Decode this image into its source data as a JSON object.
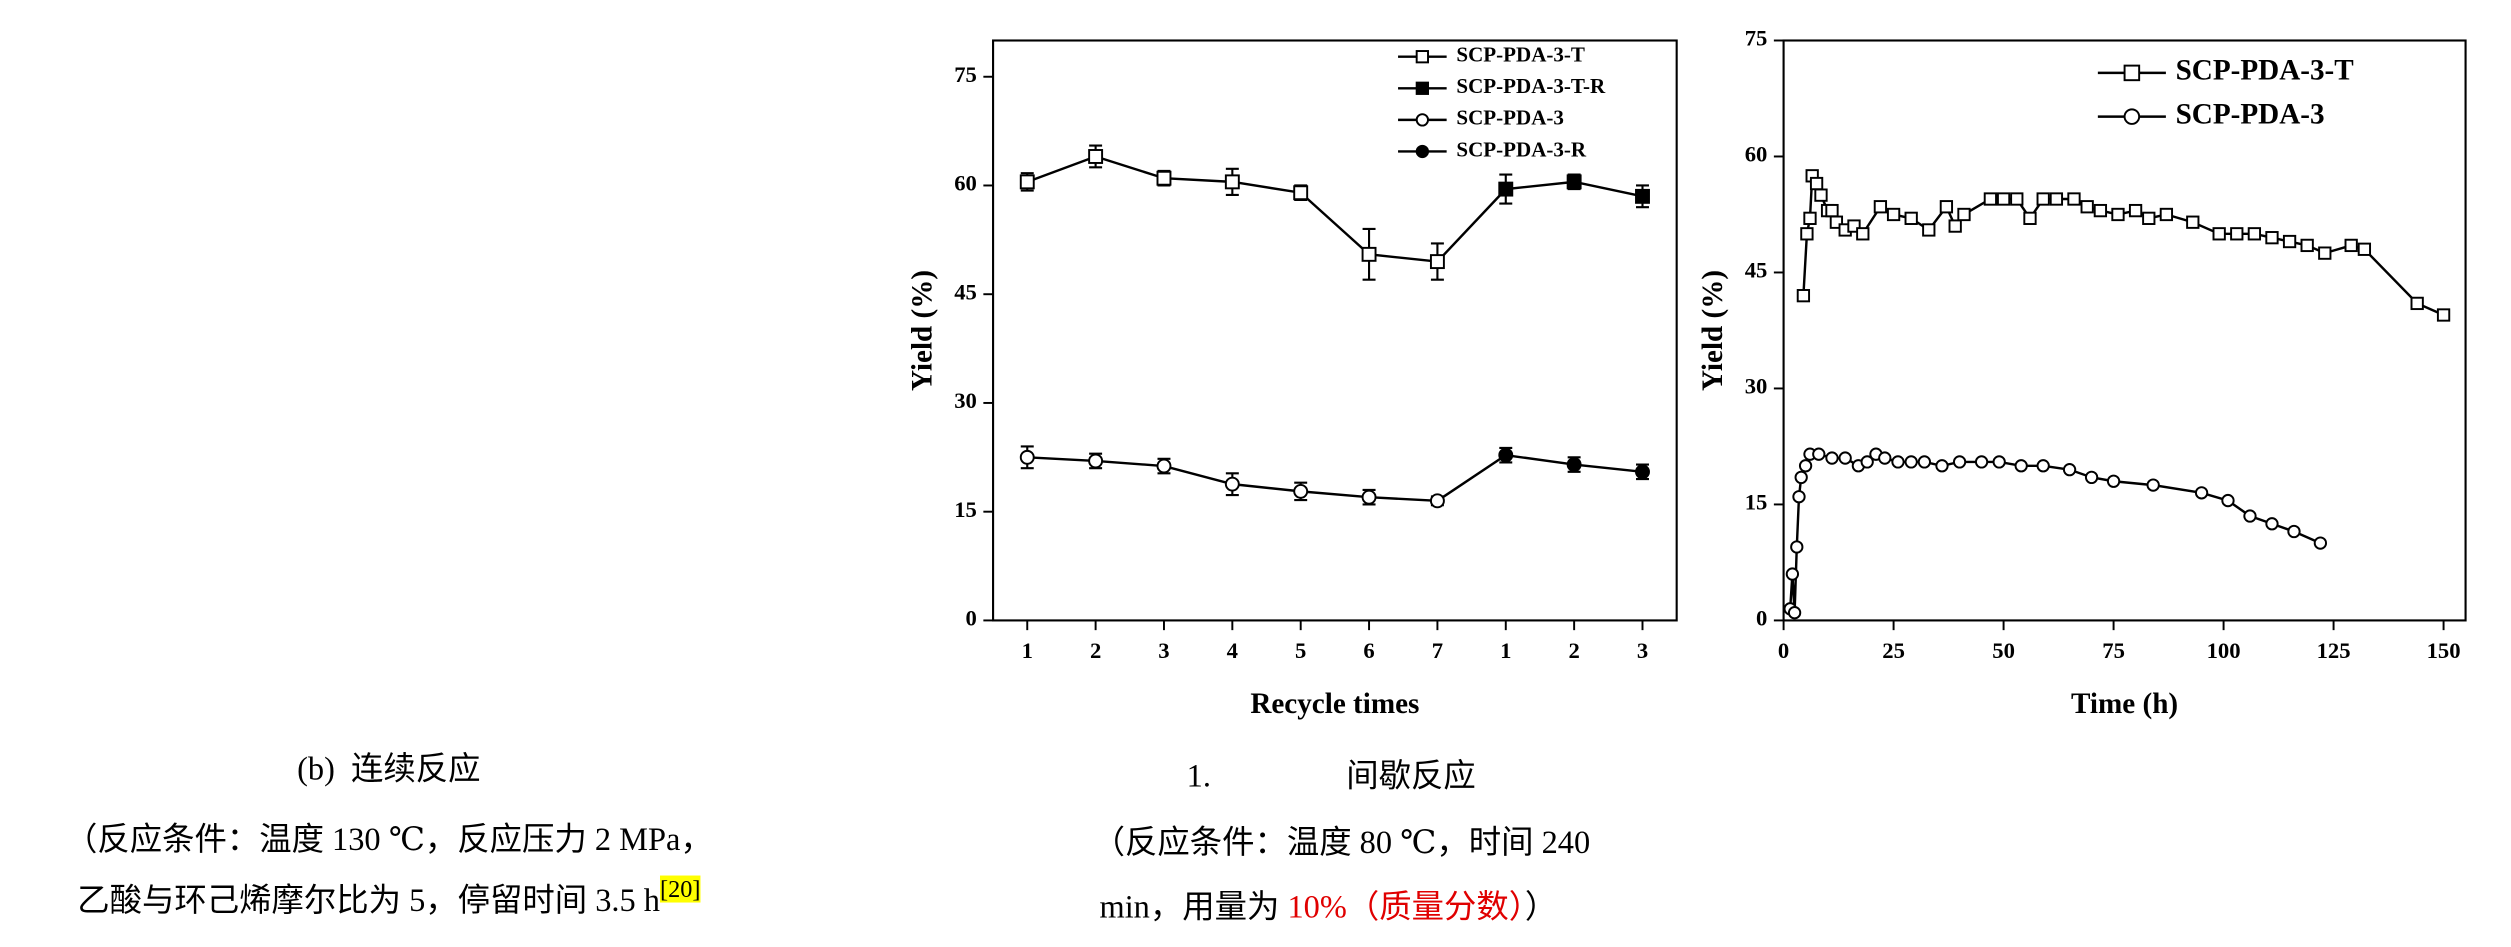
{
  "chart_data": [
    {
      "type": "line",
      "xlabel": "Recycle times",
      "ylabel": "Yield (%)",
      "categories": [
        "1",
        "2",
        "3",
        "4",
        "5",
        "6",
        "7",
        "1",
        "2",
        "3"
      ],
      "ylim": [
        0,
        80
      ],
      "yticks": [
        0,
        15,
        30,
        45,
        60,
        75
      ],
      "legend": "upper right",
      "series": [
        {
          "name": "SCP-PDA-3-T",
          "color": "#000000",
          "marker": "square",
          "filled": false,
          "values": [
            60.5,
            64,
            61,
            60.5,
            59,
            50.5,
            49.5,
            null,
            null,
            null
          ],
          "errors": [
            1.2,
            1.5,
            1,
            1.8,
            1,
            3.5,
            2.5,
            null,
            null,
            null
          ]
        },
        {
          "name": "SCP-PDA-3-T-R",
          "color": "#000000",
          "marker": "square",
          "filled": true,
          "values": [
            null,
            null,
            null,
            null,
            null,
            null,
            null,
            59.5,
            60.5,
            58.5
          ],
          "errors": [
            null,
            null,
            null,
            null,
            null,
            null,
            null,
            2,
            1,
            1.5
          ]
        },
        {
          "name": "SCP-PDA-3",
          "color": "#000000",
          "marker": "circle",
          "filled": false,
          "values": [
            22.5,
            22,
            21.3,
            18.8,
            17.8,
            17,
            16.5,
            null,
            null,
            null
          ],
          "errors": [
            1.5,
            1,
            1,
            1.5,
            1.2,
            1,
            0.6,
            null,
            null,
            null
          ]
        },
        {
          "name": "SCP-PDA-3-R",
          "color": "#000000",
          "marker": "circle",
          "filled": true,
          "values": [
            null,
            null,
            null,
            null,
            null,
            null,
            null,
            22.8,
            21.5,
            20.5
          ],
          "errors": [
            null,
            null,
            null,
            null,
            null,
            null,
            null,
            1,
            1,
            1
          ]
        }
      ]
    },
    {
      "type": "line",
      "xlabel": "Time (h)",
      "ylabel": "Yield (%)",
      "xlim": [
        0,
        155
      ],
      "xticks": [
        0,
        25,
        50,
        75,
        100,
        125,
        150
      ],
      "ylim": [
        0,
        75
      ],
      "yticks": [
        0,
        15,
        30,
        45,
        60,
        75
      ],
      "legend": "upper right",
      "series": [
        {
          "name": "SCP-PDA-3-T",
          "color": "#000000",
          "marker": "square",
          "filled": false,
          "x": [
            4.5,
            5.3,
            6,
            6.5,
            7.5,
            8.5,
            10,
            11,
            12,
            14,
            16,
            18,
            22,
            25,
            29,
            33,
            37,
            39,
            41,
            47,
            50,
            53,
            56,
            59,
            62,
            66,
            69,
            72,
            76,
            80,
            83,
            87,
            93,
            99,
            103,
            107,
            111,
            115,
            119,
            123,
            129,
            132,
            144,
            150
          ],
          "values": [
            42,
            50,
            52,
            57.5,
            56.5,
            55,
            53,
            53,
            51.5,
            50.5,
            51,
            50,
            53.5,
            52.5,
            52,
            50.5,
            53.5,
            51,
            52.5,
            54.5,
            54.5,
            54.5,
            52,
            54.5,
            54.5,
            54.5,
            53.5,
            53,
            52.5,
            53,
            52,
            52.5,
            51.5,
            50,
            50,
            50,
            49.5,
            49,
            48.5,
            47.5,
            48.5,
            48,
            41,
            39.5
          ]
        },
        {
          "name": "SCP-PDA-3",
          "color": "#000000",
          "marker": "circle",
          "filled": false,
          "x": [
            1.5,
            2,
            2.5,
            3,
            3.5,
            4,
            5,
            6,
            8,
            11,
            14,
            17,
            19,
            21,
            23,
            26,
            29,
            32,
            36,
            40,
            45,
            49,
            54,
            59,
            65,
            70,
            75,
            84,
            95,
            101,
            106,
            111,
            116,
            122
          ],
          "values": [
            1.5,
            6,
            1,
            9.5,
            16,
            18.5,
            20,
            21.5,
            21.5,
            21,
            21,
            20,
            20.5,
            21.5,
            21,
            20.5,
            20.5,
            20.5,
            20,
            20.5,
            20.5,
            20.5,
            20,
            20,
            19.5,
            18.5,
            18,
            17.5,
            16.5,
            15.5,
            13.5,
            12.5,
            11.5,
            10
          ]
        }
      ]
    }
  ],
  "captions": {
    "left": {
      "label": "(b)",
      "title": "连续反应",
      "line1": "（反应条件：温度 130 ℃，反应压力 2 MPa，",
      "line2": "乙酸与环己烯摩尔比为 5，停留时间 3.5 h",
      "ref": "[20]"
    },
    "middle": {
      "label": "1.",
      "title": "间歇反应",
      "line1": "（反应条件：温度 80 ℃，时间 240",
      "line2": "min，用量为 ",
      "highlight": "10%（质量分数）",
      "end": "）"
    }
  }
}
